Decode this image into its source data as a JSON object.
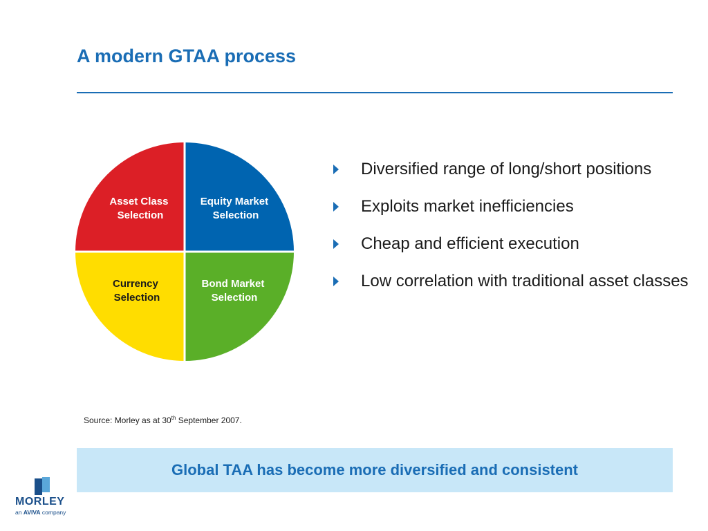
{
  "title": "A modern GTAA process",
  "pie": {
    "segments": [
      {
        "line1": "Asset Class",
        "line2": "Selection",
        "color": "#dc1f26",
        "text_color": "#ffffff"
      },
      {
        "line1": "Equity Market",
        "line2": "Selection",
        "color": "#0064b0",
        "text_color": "#ffffff"
      },
      {
        "line1": "Bond Market",
        "line2": "Selection",
        "color": "#5aaf28",
        "text_color": "#ffffff"
      },
      {
        "line1": "Currency",
        "line2": "Selection",
        "color": "#ffdd00",
        "text_color": "#1a1a1a"
      }
    ]
  },
  "bullets": [
    "Diversified range of long/short positions",
    "Exploits market inefficiencies",
    "Cheap and efficient execution",
    "Low correlation with traditional asset classes"
  ],
  "source": {
    "prefix": "Source: Morley as at 30",
    "sup": "th",
    "suffix": " September 2007."
  },
  "banner": "Global TAA has become more diversified and consistent",
  "logo": {
    "word": "MORLEY",
    "sub_prefix": "an ",
    "sub_brand": "AVIVA",
    "sub_suffix": " company"
  },
  "colors": {
    "accent": "#1a6db5",
    "banner_bg": "#c8e7f8"
  }
}
